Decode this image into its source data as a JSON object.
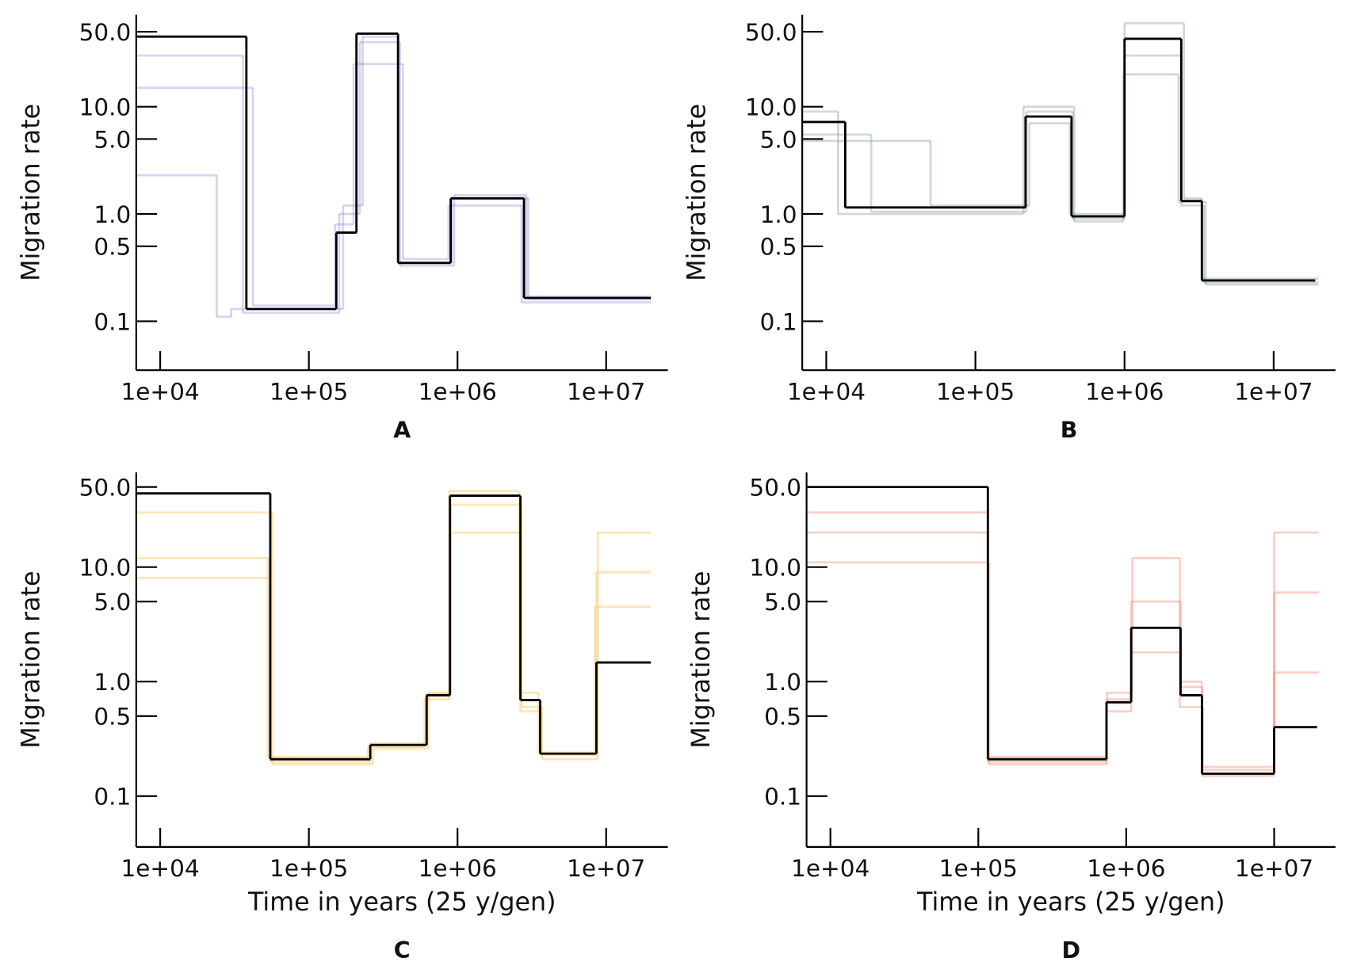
{
  "chart_data": [
    {
      "type": "step",
      "caption": "A",
      "ylabel": "Migration rate",
      "log_x": true,
      "log_y": true,
      "xlim": [
        6900,
        26000000
      ],
      "ylim": [
        0.035,
        72
      ],
      "xticks": [
        {
          "value": 10000,
          "label": "1e+04"
        },
        {
          "value": 100000,
          "label": "1e+05"
        },
        {
          "value": 1000000,
          "label": "1e+06"
        },
        {
          "value": 10000000,
          "label": "1e+07"
        }
      ],
      "yticks": [
        {
          "value": 50,
          "label": "50.0"
        },
        {
          "value": 10,
          "label": "10.0"
        },
        {
          "value": 5,
          "label": "5.0"
        },
        {
          "value": 1,
          "label": "1.0"
        },
        {
          "value": 0.5,
          "label": "0.5"
        },
        {
          "value": 0.1,
          "label": "0.1"
        }
      ],
      "series": [
        {
          "color": "#9b7fd4",
          "opacity": 0.35,
          "edges": [
            6900,
            36000,
            160000,
            220000,
            410000,
            950000,
            2900000,
            20000000
          ],
          "values": [
            30,
            0.12,
            1.0,
            40,
            0.33,
            1.5,
            0.17
          ]
        },
        {
          "color": "#9b7fd4",
          "opacity": 0.35,
          "edges": [
            6900,
            42000,
            150000,
            200000,
            430000,
            870000,
            2700000,
            20000000
          ],
          "values": [
            15,
            0.14,
            0.8,
            25,
            0.38,
            1.2,
            0.15
          ]
        },
        {
          "color": "#9b7fd4",
          "opacity": 0.35,
          "edges": [
            6900,
            24000,
            30000,
            170000,
            230000,
            400000,
            920000,
            3000000,
            20000000
          ],
          "values": [
            2.3,
            0.11,
            0.13,
            1.2,
            45,
            0.35,
            1.4,
            0.16
          ]
        },
        {
          "color": "#000000",
          "opacity": 1,
          "edges": [
            6900,
            38000,
            153000,
            209000,
            398000,
            900000,
            2800000,
            20000000
          ],
          "values": [
            45,
            0.13,
            0.67,
            48,
            0.35,
            1.4,
            0.165
          ]
        }
      ]
    },
    {
      "type": "step",
      "caption": "B",
      "ylabel": "Migration rate",
      "log_x": true,
      "log_y": true,
      "xlim": [
        6900,
        26000000
      ],
      "ylim": [
        0.035,
        72
      ],
      "xticks": [
        {
          "value": 10000,
          "label": "1e+04"
        },
        {
          "value": 100000,
          "label": "1e+05"
        },
        {
          "value": 1000000,
          "label": "1e+06"
        },
        {
          "value": 10000000,
          "label": "1e+07"
        }
      ],
      "yticks": [
        {
          "value": 50,
          "label": "50.0"
        },
        {
          "value": 10,
          "label": "10.0"
        },
        {
          "value": 5,
          "label": "5.0"
        },
        {
          "value": 1,
          "label": "1.0"
        },
        {
          "value": 0.5,
          "label": "0.5"
        },
        {
          "value": 0.1,
          "label": "0.1"
        }
      ],
      "series": [
        {
          "color": "#7f8f94",
          "opacity": 0.35,
          "edges": [
            6900,
            20000,
            220000,
            450000,
            1000000,
            2400000,
            3400000,
            20000000
          ],
          "values": [
            5.5,
            1.05,
            9,
            0.9,
            30,
            1.2,
            0.23
          ]
        },
        {
          "color": "#7f8f94",
          "opacity": 0.35,
          "edges": [
            6900,
            50000,
            230000,
            430000,
            1000000,
            2500000,
            3300000,
            20000000
          ],
          "values": [
            4.8,
            1.2,
            7,
            1.0,
            60,
            1.4,
            0.25
          ]
        },
        {
          "color": "#7f8f94",
          "opacity": 0.35,
          "edges": [
            6900,
            12000,
            210000,
            460000,
            980000,
            2300000,
            3500000,
            20000000
          ],
          "values": [
            9,
            1.0,
            10,
            0.85,
            20,
            1.3,
            0.22
          ]
        },
        {
          "color": "#000000",
          "opacity": 1,
          "edges": [
            6900,
            13400,
            217000,
            441000,
            1000000,
            2400000,
            3300000,
            19000000
          ],
          "values": [
            7.2,
            1.15,
            8.1,
            0.95,
            43,
            1.32,
            0.24
          ]
        }
      ]
    },
    {
      "type": "step",
      "caption": "C",
      "ylabel": "Migration rate",
      "xlabel": "Time in years (25 y/gen)",
      "log_x": true,
      "log_y": true,
      "xlim": [
        6900,
        26000000
      ],
      "ylim": [
        0.036,
        67
      ],
      "xticks": [
        {
          "value": 10000,
          "label": "1e+04"
        },
        {
          "value": 100000,
          "label": "1e+05"
        },
        {
          "value": 1000000,
          "label": "1e+06"
        },
        {
          "value": 10000000,
          "label": "1e+07"
        }
      ],
      "yticks": [
        {
          "value": 50,
          "label": "50.0"
        },
        {
          "value": 10,
          "label": "10.0"
        },
        {
          "value": 5,
          "label": "5.0"
        },
        {
          "value": 1,
          "label": "1.0"
        },
        {
          "value": 0.5,
          "label": "0.5"
        },
        {
          "value": 0.1,
          "label": "0.1"
        }
      ],
      "series": [
        {
          "color": "#f7c046",
          "opacity": 0.4,
          "edges": [
            6900,
            57000,
            270000,
            640000,
            900000,
            2700000,
            3700000,
            8800000,
            20000000
          ],
          "values": [
            30,
            0.19,
            0.26,
            0.8,
            35,
            0.6,
            0.21,
            20
          ]
        },
        {
          "color": "#f7c046",
          "opacity": 0.4,
          "edges": [
            6900,
            53000,
            250000,
            600000,
            880000,
            2600000,
            3500000,
            8400000,
            20000000
          ],
          "values": [
            12,
            0.22,
            0.27,
            0.7,
            46,
            0.8,
            0.24,
            4.5
          ]
        },
        {
          "color": "#f7c046",
          "opacity": 0.4,
          "edges": [
            6900,
            55000,
            259000,
            620000,
            890000,
            2650000,
            3600000,
            8600000,
            20000000
          ],
          "values": [
            8,
            0.2,
            0.29,
            0.78,
            20,
            0.55,
            0.23,
            9
          ]
        },
        {
          "color": "#000000",
          "opacity": 1,
          "edges": [
            6900,
            55000,
            259000,
            620000,
            890000,
            2650000,
            3600000,
            8600000,
            20000000
          ],
          "values": [
            44,
            0.21,
            0.28,
            0.76,
            42,
            0.69,
            0.235,
            1.47
          ]
        }
      ]
    },
    {
      "type": "step",
      "caption": "D",
      "ylabel": "Migration rate",
      "xlabel": "Time in years (25 y/gen)",
      "log_x": true,
      "log_y": true,
      "xlim": [
        6900,
        26000000
      ],
      "ylim": [
        0.036,
        67
      ],
      "xticks": [
        {
          "value": 10000,
          "label": "1e+04"
        },
        {
          "value": 100000,
          "label": "1e+05"
        },
        {
          "value": 1000000,
          "label": "1e+06"
        },
        {
          "value": 10000000,
          "label": "1e+07"
        }
      ],
      "yticks": [
        {
          "value": 50,
          "label": "50.0"
        },
        {
          "value": 10,
          "label": "10.0"
        },
        {
          "value": 5,
          "label": "5.0"
        },
        {
          "value": 1,
          "label": "1.0"
        },
        {
          "value": 0.5,
          "label": "0.5"
        },
        {
          "value": 0.1,
          "label": "0.1"
        }
      ],
      "series": [
        {
          "color": "#ef8a72",
          "opacity": 0.4,
          "edges": [
            6900,
            118000,
            740000,
            1100000,
            2300000,
            3300000,
            10000000,
            20000000
          ],
          "values": [
            11,
            0.19,
            0.8,
            12,
            0.6,
            0.18,
            20
          ]
        },
        {
          "color": "#ef8a72",
          "opacity": 0.4,
          "edges": [
            6900,
            116000,
            735000,
            1080000,
            2330000,
            3250000,
            10000000,
            20000000
          ],
          "values": [
            30,
            0.22,
            0.55,
            5,
            1.0,
            0.17,
            6
          ]
        },
        {
          "color": "#ef8a72",
          "opacity": 0.4,
          "edges": [
            6900,
            116000,
            735000,
            1080000,
            2330000,
            3250000,
            10000000,
            20000000
          ],
          "values": [
            20,
            0.2,
            0.7,
            1.8,
            0.9,
            0.15,
            1.2
          ]
        },
        {
          "color": "#000000",
          "opacity": 1,
          "edges": [
            6900,
            116000,
            735000,
            1080000,
            2330000,
            3250000,
            10000000,
            19500000
          ],
          "values": [
            50,
            0.21,
            0.66,
            2.95,
            0.76,
            0.157,
            0.4
          ]
        }
      ]
    }
  ]
}
